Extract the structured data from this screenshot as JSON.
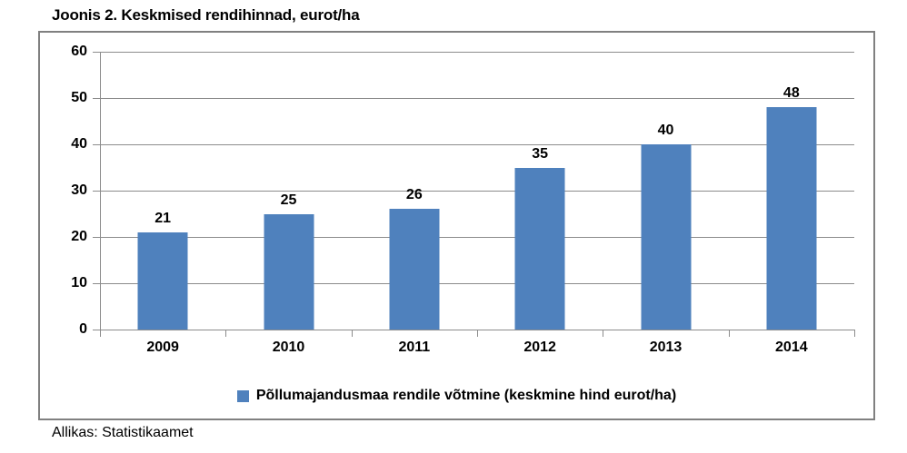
{
  "title": "Joonis 2. Keskmised rendihinnad, eurot/ha",
  "source": "Allikas: Statistikaamet",
  "legend": {
    "label": "Põllumajandusmaa rendile võtmine (keskmine hind eurot/ha)",
    "marker": "blue-square"
  },
  "colors": {
    "bar": "#4F81BD",
    "grid": "#8C8C8C",
    "frame_border": "#808080",
    "text": "#000000",
    "background": "#FFFFFF"
  },
  "chart_data": {
    "type": "bar",
    "categories": [
      "2009",
      "2010",
      "2011",
      "2012",
      "2013",
      "2014"
    ],
    "values": [
      21,
      25,
      26,
      35,
      40,
      48
    ],
    "title": "Joonis 2. Keskmised rendihinnad, eurot/ha",
    "xlabel": "",
    "ylabel": "",
    "ylim": [
      0,
      60
    ],
    "yticks": [
      0,
      10,
      20,
      30,
      40,
      50,
      60
    ],
    "grid": true,
    "data_labels": true,
    "legend_entries": [
      "Põllumajandusmaa rendile võtmine (keskmine hind eurot/ha)"
    ],
    "legend_position": "bottom",
    "bar_color": "#4F81BD"
  }
}
